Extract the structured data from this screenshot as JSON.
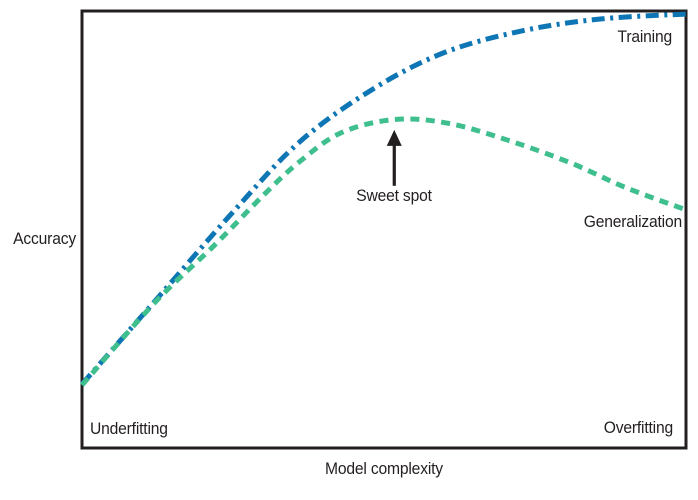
{
  "figure": {
    "background": "#ffffff",
    "text_color": "#231f20",
    "axis_color": "#231f20"
  },
  "chart_data": {
    "type": "line",
    "title": "",
    "axes": {
      "x_label": "Model complexity",
      "y_label": "Accuracy",
      "tick_labels": "none",
      "frame": "full-box",
      "x_range": [
        0,
        1
      ],
      "y_range": [
        0,
        1
      ]
    },
    "legend": "inline-labels",
    "series": [
      {
        "name": "Training",
        "color": "#0e76b4",
        "line_style": "dash-dot",
        "label_position": "top-right",
        "points": [
          [
            0.0,
            0.146
          ],
          [
            0.12,
            0.335
          ],
          [
            0.25,
            0.54
          ],
          [
            0.36,
            0.7
          ],
          [
            0.48,
            0.82
          ],
          [
            0.6,
            0.905
          ],
          [
            0.73,
            0.955
          ],
          [
            0.86,
            0.982
          ],
          [
            1.0,
            0.993
          ]
        ]
      },
      {
        "name": "Generalization",
        "color": "#3fbf8e",
        "line_style": "dashed",
        "label_position": "right-of-curve-end",
        "points": [
          [
            0.0,
            0.144
          ],
          [
            0.12,
            0.332
          ],
          [
            0.22,
            0.465
          ],
          [
            0.3,
            0.578
          ],
          [
            0.36,
            0.655
          ],
          [
            0.43,
            0.722
          ],
          [
            0.52,
            0.752
          ],
          [
            0.61,
            0.742
          ],
          [
            0.71,
            0.702
          ],
          [
            0.81,
            0.652
          ],
          [
            0.9,
            0.596
          ],
          [
            1.0,
            0.545
          ]
        ]
      }
    ],
    "annotations": [
      {
        "id": "sweet-spot",
        "text": "Sweet spot",
        "type": "arrow-up",
        "x": 0.517,
        "arrow_tip_y": 0.728,
        "arrow_tail_y": 0.6,
        "note": "arrow points to the peak of the Generalization curve"
      },
      {
        "id": "underfitting",
        "text": "Underfitting",
        "type": "region-label",
        "position": "bottom-left"
      },
      {
        "id": "overfitting",
        "text": "Overfitting",
        "type": "region-label",
        "position": "bottom-right"
      }
    ]
  }
}
